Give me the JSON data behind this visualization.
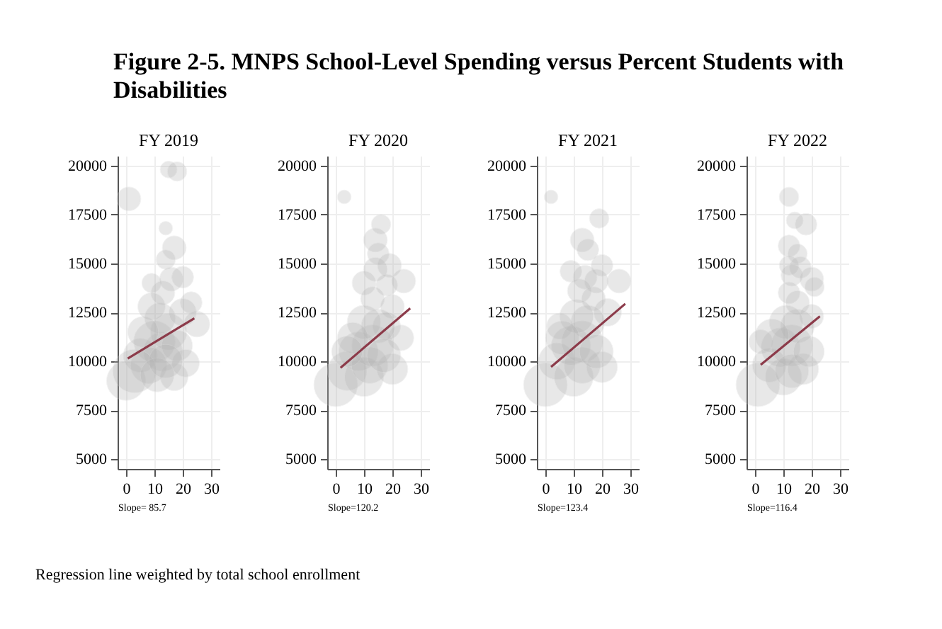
{
  "chart_data": [
    {
      "type": "bubble",
      "title": "FY 2019",
      "annotations": [
        "Figure 2-5. MNPS School-Level Spending versus Percent Students with Disabilities",
        "Slope= 85.7",
        "Regression line weighted by total school enrollment"
      ],
      "xlim": [
        -3,
        33
      ],
      "xticks": [
        0,
        10,
        20,
        30
      ],
      "ylim": [
        4500,
        20500
      ],
      "yticks": [
        5000,
        7500,
        10000,
        12500,
        15000,
        17500,
        20000
      ],
      "grid": true,
      "series": [
        {
          "color": "#b4b4b4",
          "x": [
            15,
            18,
            1,
            14,
            17,
            14,
            20,
            9,
            23,
            16,
            13,
            25,
            0,
            17,
            5,
            10,
            13,
            15,
            8,
            18,
            12,
            6,
            20,
            3,
            11,
            21,
            9,
            14
          ],
          "values": [
            19800,
            19700,
            18300,
            16800,
            15800,
            15200,
            14300,
            14000,
            13000,
            14200,
            13500,
            11900,
            9000,
            9200,
            10300,
            11000,
            10500,
            11500,
            9800,
            10800,
            12200,
            11500,
            12500,
            9500,
            9300,
            9900,
            12800,
            10000
          ],
          "sizes": [
            0.15,
            0.2,
            0.3,
            0.1,
            0.3,
            0.2,
            0.25,
            0.2,
            0.25,
            0.3,
            0.3,
            0.35,
            0.8,
            0.4,
            0.6,
            0.9,
            0.8,
            0.7,
            0.7,
            0.5,
            0.5,
            0.5,
            0.4,
            1,
            0.6,
            0.4,
            0.4,
            0.6
          ]
        },
        {
          "type": "line",
          "color": "#8c3b4a",
          "x": [
            0.6,
            24.1
          ],
          "values": [
            10140,
            12200
          ]
        }
      ]
    },
    {
      "type": "bubble",
      "title": "FY 2020",
      "annotations": [
        "Slope=120.2"
      ],
      "xlim": [
        -3,
        33
      ],
      "xticks": [
        0,
        10,
        20,
        30
      ],
      "ylim": [
        4500,
        20500
      ],
      "yticks": [
        5000,
        7500,
        10000,
        12500,
        15000,
        17500,
        20000
      ],
      "grid": true,
      "series": [
        {
          "color": "#b4b4b4",
          "x": [
            3,
            16,
            14,
            15,
            19,
            14,
            10,
            24,
            18,
            13,
            20,
            18,
            23,
            0,
            4,
            10,
            20,
            8,
            13,
            15,
            10,
            6,
            12,
            17,
            4
          ],
          "values": [
            18400,
            17000,
            16200,
            15500,
            14900,
            14700,
            14000,
            14100,
            13900,
            13200,
            12800,
            11800,
            11200,
            8800,
            9500,
            9200,
            9600,
            10500,
            10800,
            11800,
            12000,
            11200,
            9800,
            10300,
            10500
          ],
          "sizes": [
            0.1,
            0.2,
            0.3,
            0.25,
            0.3,
            0.3,
            0.3,
            0.3,
            0.25,
            0.3,
            0.3,
            0.4,
            0.35,
            1,
            0.8,
            0.8,
            0.5,
            0.8,
            0.9,
            0.6,
            0.6,
            0.5,
            0.7,
            0.6,
            0.5
          ]
        },
        {
          "type": "line",
          "color": "#8c3b4a",
          "x": [
            1.7,
            26.3
          ],
          "values": [
            9670,
            12710
          ]
        }
      ]
    },
    {
      "type": "bubble",
      "title": "FY 2021",
      "annotations": [
        "Slope=123.4"
      ],
      "xlim": [
        -3,
        33
      ],
      "xticks": [
        0,
        10,
        20,
        30
      ],
      "ylim": [
        4500,
        20500
      ],
      "yticks": [
        5000,
        7500,
        10000,
        12500,
        15000,
        17500,
        20000
      ],
      "grid": true,
      "series": [
        {
          "color": "#b4b4b4",
          "x": [
            2,
            19,
            13,
            15,
            20,
            9,
            14,
            26,
            18,
            12,
            17,
            22,
            5,
            0,
            4,
            10,
            20,
            9,
            13,
            15,
            11,
            6,
            13,
            18
          ],
          "values": [
            18400,
            17300,
            16200,
            15700,
            14900,
            14600,
            14300,
            14100,
            14100,
            13600,
            13200,
            12500,
            11800,
            8800,
            10000,
            9200,
            9700,
            10800,
            11000,
            12000,
            12300,
            11200,
            9800,
            10500
          ],
          "sizes": [
            0.1,
            0.2,
            0.3,
            0.25,
            0.25,
            0.25,
            0.3,
            0.3,
            0.3,
            0.3,
            0.3,
            0.4,
            0.35,
            1,
            0.7,
            0.8,
            0.5,
            0.8,
            0.9,
            0.6,
            0.6,
            0.6,
            0.7,
            0.6
          ]
        },
        {
          "type": "line",
          "color": "#8c3b4a",
          "x": [
            2,
            28.2
          ],
          "values": [
            9710,
            12940
          ]
        }
      ]
    },
    {
      "type": "bubble",
      "title": "FY 2022",
      "annotations": [
        "Slope=116.4"
      ],
      "xlim": [
        -3,
        33
      ],
      "xticks": [
        0,
        10,
        20,
        30
      ],
      "ylim": [
        4500,
        20500
      ],
      "yticks": [
        5000,
        7500,
        10000,
        12500,
        15000,
        17500,
        20000
      ],
      "grid": true,
      "series": [
        {
          "color": "#b4b4b4",
          "x": [
            12,
            14,
            18,
            12,
            15,
            12,
            16,
            13,
            20,
            21,
            12,
            15,
            20,
            2,
            1,
            5,
            10,
            17,
            9,
            13,
            15,
            11,
            6,
            13,
            19
          ],
          "values": [
            18400,
            17200,
            17000,
            15900,
            15500,
            14900,
            14800,
            14400,
            14200,
            13800,
            13500,
            13000,
            12300,
            11000,
            8800,
            9800,
            9200,
            9600,
            10700,
            10800,
            11800,
            12000,
            11300,
            9500,
            10500
          ],
          "sizes": [
            0.2,
            0.15,
            0.25,
            0.25,
            0.2,
            0.2,
            0.25,
            0.25,
            0.3,
            0.2,
            0.25,
            0.3,
            0.3,
            0.3,
            1,
            0.6,
            0.7,
            0.5,
            0.8,
            0.9,
            0.6,
            0.6,
            0.6,
            0.6,
            0.5
          ]
        },
        {
          "type": "line",
          "color": "#8c3b4a",
          "x": [
            2,
            22.9
          ],
          "values": [
            9820,
            12300
          ]
        }
      ]
    }
  ]
}
